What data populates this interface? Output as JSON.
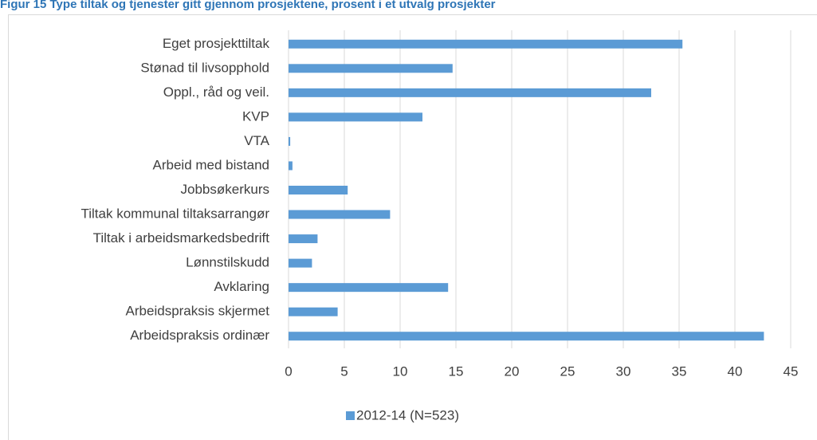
{
  "chart_data": {
    "type": "bar",
    "orientation": "horizontal",
    "title": "Figur 15 Type tiltak og tjenester gitt gjennom prosjektene, prosent i et utvalg prosjekter",
    "categories": [
      "Eget prosjekttiltak",
      "Stønad til livsopphold",
      "Oppl., råd og veil.",
      "KVP",
      "VTA",
      "Arbeid med bistand",
      "Jobbsøkerkurs",
      "Tiltak kommunal tiltaksarrangør",
      "Tiltak i arbeidsmarkedsbedrift",
      "Lønnstilskudd",
      "Avklaring",
      "Arbeidspraksis skjermet",
      "Arbeidspraksis ordinær"
    ],
    "series": [
      {
        "name": "2012-14 (N=523)",
        "color": "#5b9bd5",
        "values": [
          35.3,
          14.7,
          32.5,
          12,
          0.15,
          0.35,
          5.3,
          9.1,
          2.6,
          2.1,
          14.3,
          4.4,
          42.6
        ]
      }
    ],
    "xlim": [
      0,
      45
    ],
    "xticks": [
      0,
      5,
      10,
      15,
      20,
      25,
      30,
      35,
      40,
      45
    ],
    "grid": true,
    "legend": "bottom"
  }
}
